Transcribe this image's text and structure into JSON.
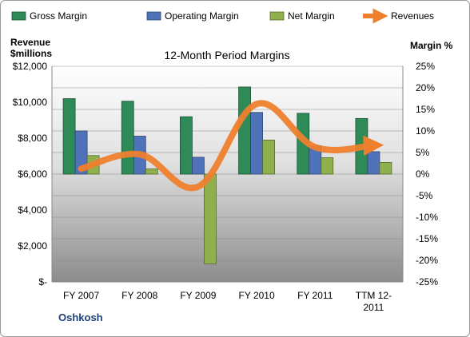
{
  "chart_data": {
    "type": "bar",
    "title": "12-Month Period Margins",
    "company": "Oshkosh",
    "y_left_label": [
      "Revenue",
      "$millions"
    ],
    "y_right_label": "Margin %",
    "categories": [
      "FY 2007",
      "FY 2008",
      "FY 2009",
      "FY 2010",
      "FY 2011",
      "TTM 12-2011"
    ],
    "category_label_lines": [
      [
        "FY 2007"
      ],
      [
        "FY 2008"
      ],
      [
        "FY 2009"
      ],
      [
        "FY 2010"
      ],
      [
        "FY 2011"
      ],
      [
        "TTM 12-",
        "2011"
      ]
    ],
    "y_left": {
      "min": 0,
      "max": 12000,
      "ticks": [
        0,
        2000,
        4000,
        6000,
        8000,
        10000,
        12000
      ],
      "tick_labels": [
        "$-",
        "$2,000",
        "$4,000",
        "$6,000",
        "$8,000",
        "$10,000",
        "$12,000"
      ]
    },
    "y_right": {
      "min": -25,
      "max": 25,
      "ticks": [
        -25,
        -20,
        -15,
        -10,
        -5,
        0,
        5,
        10,
        15,
        20,
        25
      ],
      "tick_labels": [
        "-25%",
        "-20%",
        "-15%",
        "-10%",
        "-5%",
        "0%",
        "5%",
        "10%",
        "15%",
        "20%",
        "25%"
      ]
    },
    "series": [
      {
        "name": "Gross Margin",
        "kind": "bar",
        "axis": "right",
        "color": "#2e8b57",
        "values": [
          17.5,
          16.9,
          13.3,
          20.2,
          14.1,
          12.9
        ]
      },
      {
        "name": "Operating Margin",
        "kind": "bar",
        "axis": "right",
        "color": "#4f72b8",
        "values": [
          10.0,
          8.8,
          3.9,
          14.3,
          6.6,
          5.2
        ]
      },
      {
        "name": "Net Margin",
        "kind": "bar",
        "axis": "right",
        "color": "#8fb04d",
        "values": [
          4.3,
          1.2,
          -20.8,
          7.9,
          3.8,
          2.7
        ]
      },
      {
        "name": "Revenues",
        "kind": "line",
        "axis": "left",
        "color": "#ee7f2d",
        "values": [
          6300,
          7100,
          5300,
          9900,
          7500,
          7600
        ]
      }
    ],
    "grid": true,
    "legend_position": "top"
  }
}
